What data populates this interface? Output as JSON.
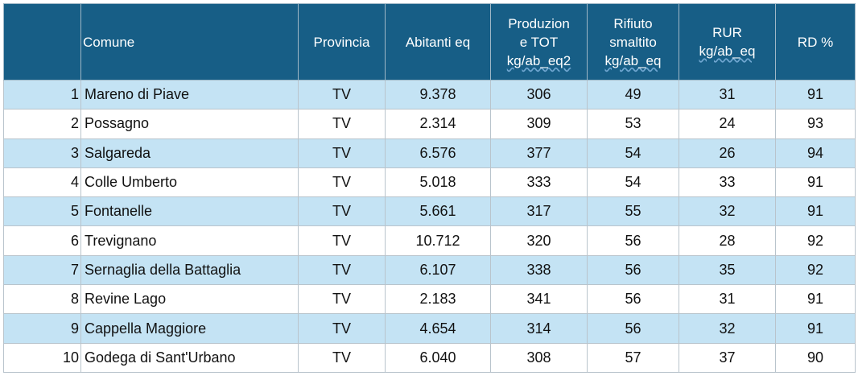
{
  "table": {
    "columns": [
      [
        "Comune"
      ],
      [
        "Provincia"
      ],
      [
        "Abitanti eq"
      ],
      [
        "Produzion",
        "e TOT",
        "kg/ab_eq2"
      ],
      [
        "Rifiuto",
        "smaltito",
        "kg/ab_eq"
      ],
      [
        "RUR",
        "kg/ab_eq"
      ],
      [
        "RD %"
      ]
    ],
    "rows": [
      [
        "1",
        "Mareno di Piave",
        "TV",
        "9.378",
        "306",
        "49",
        "31",
        "91"
      ],
      [
        "2",
        "Possagno",
        "TV",
        "2.314",
        "309",
        "53",
        "24",
        "93"
      ],
      [
        "3",
        "Salgareda",
        "TV",
        "6.576",
        "377",
        "54",
        "26",
        "94"
      ],
      [
        "4",
        "Colle Umberto",
        "TV",
        "5.018",
        "333",
        "54",
        "33",
        "91"
      ],
      [
        "5",
        "Fontanelle",
        "TV",
        "5.661",
        "317",
        "55",
        "32",
        "91"
      ],
      [
        "6",
        "Trevignano",
        "TV",
        "10.712",
        "320",
        "56",
        "28",
        "92"
      ],
      [
        "7",
        "Sernaglia della Battaglia",
        "TV",
        "6.107",
        "338",
        "56",
        "35",
        "92"
      ],
      [
        "8",
        "Revine Lago",
        "TV",
        "2.183",
        "341",
        "56",
        "31",
        "91"
      ],
      [
        "9",
        "Cappella Maggiore",
        "TV",
        "4.654",
        "314",
        "56",
        "32",
        "91"
      ],
      [
        "10",
        "Godega di Sant'Urbano",
        "TV",
        "6.040",
        "308",
        "57",
        "37",
        "90"
      ]
    ]
  }
}
